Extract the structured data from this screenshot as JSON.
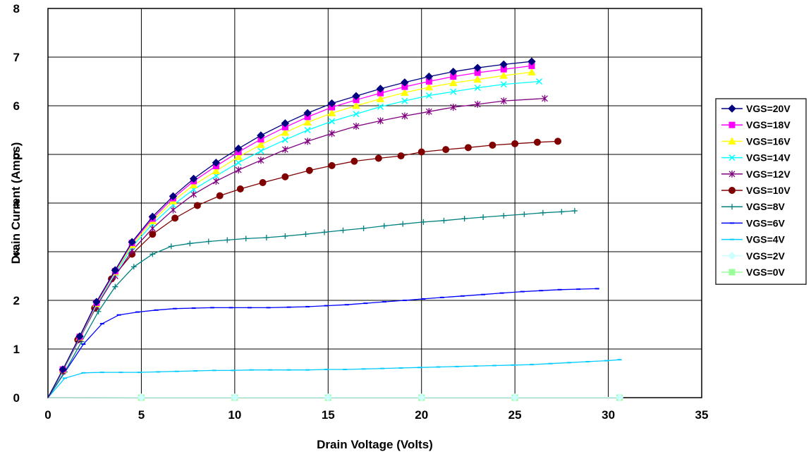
{
  "chart_data": {
    "type": "line",
    "title": "",
    "xlabel": "Drain Voltage (Volts)",
    "ylabel": "Drain Current (Amps)",
    "xlim": [
      0,
      35
    ],
    "ylim": [
      0,
      8
    ],
    "x_ticks": [
      "0",
      "5",
      "10",
      "15",
      "20",
      "25",
      "30",
      "35"
    ],
    "y_ticks": [
      "0",
      "1",
      "2",
      "3",
      "4",
      "5",
      "6",
      "7",
      "8"
    ],
    "grid": true,
    "legend_position": "right",
    "series": [
      {
        "name": "VGS=20V",
        "color": "#000080",
        "marker": "diamond",
        "x": [
          0,
          0.8,
          1.7,
          2.6,
          3.6,
          4.5,
          5.6,
          6.7,
          7.8,
          9.0,
          10.2,
          11.4,
          12.7,
          13.9,
          15.2,
          16.5,
          17.8,
          19.1,
          20.4,
          21.7,
          23.0,
          24.4,
          25.9
        ],
        "y": [
          0,
          0.58,
          1.26,
          1.97,
          2.62,
          3.2,
          3.72,
          4.14,
          4.5,
          4.83,
          5.12,
          5.39,
          5.64,
          5.85,
          6.05,
          6.2,
          6.35,
          6.48,
          6.6,
          6.7,
          6.78,
          6.85,
          6.91
        ]
      },
      {
        "name": "VGS=18V",
        "color": "#FF00FF",
        "marker": "square",
        "x": [
          0,
          0.8,
          1.7,
          2.6,
          3.6,
          4.5,
          5.6,
          6.7,
          7.8,
          9.0,
          10.2,
          11.4,
          12.7,
          13.9,
          15.2,
          16.5,
          17.8,
          19.1,
          20.4,
          21.7,
          23.0,
          24.4,
          25.9
        ],
        "y": [
          0,
          0.58,
          1.25,
          1.95,
          2.6,
          3.18,
          3.68,
          4.1,
          4.45,
          4.76,
          5.05,
          5.31,
          5.56,
          5.77,
          5.97,
          6.12,
          6.26,
          6.39,
          6.5,
          6.6,
          6.68,
          6.75,
          6.82
        ]
      },
      {
        "name": "VGS=16V",
        "color": "#FFFF00",
        "marker": "triangle",
        "x": [
          0,
          0.8,
          1.7,
          2.6,
          3.6,
          4.5,
          5.6,
          6.7,
          7.8,
          9.0,
          10.2,
          11.4,
          12.7,
          13.9,
          15.2,
          16.5,
          17.8,
          19.1,
          20.4,
          21.7,
          23.0,
          24.4,
          25.9
        ],
        "y": [
          0,
          0.57,
          1.24,
          1.93,
          2.58,
          3.14,
          3.63,
          4.04,
          4.37,
          4.66,
          4.95,
          5.2,
          5.45,
          5.66,
          5.85,
          6.0,
          6.14,
          6.27,
          6.38,
          6.47,
          6.54,
          6.62,
          6.69
        ]
      },
      {
        "name": "VGS=14V",
        "color": "#00FFFF",
        "marker": "x",
        "x": [
          0,
          0.8,
          1.7,
          2.6,
          3.6,
          4.5,
          5.6,
          6.7,
          7.8,
          9.0,
          10.2,
          11.4,
          12.7,
          13.9,
          15.2,
          16.5,
          17.8,
          19.1,
          20.4,
          21.7,
          23.0,
          24.4,
          26.3
        ],
        "y": [
          0,
          0.56,
          1.23,
          1.91,
          2.55,
          3.1,
          3.57,
          3.96,
          4.28,
          4.56,
          4.83,
          5.07,
          5.3,
          5.5,
          5.68,
          5.83,
          5.98,
          6.1,
          6.21,
          6.29,
          6.37,
          6.44,
          6.5
        ]
      },
      {
        "name": "VGS=12V",
        "color": "#800080",
        "marker": "asterisk",
        "x": [
          0,
          0.8,
          1.7,
          2.6,
          3.6,
          4.5,
          5.6,
          6.7,
          7.8,
          9.0,
          10.2,
          11.4,
          12.7,
          13.9,
          15.2,
          16.5,
          17.8,
          19.1,
          20.4,
          21.7,
          23.0,
          24.4,
          26.6
        ],
        "y": [
          0,
          0.55,
          1.21,
          1.88,
          2.5,
          3.02,
          3.48,
          3.86,
          4.18,
          4.45,
          4.68,
          4.88,
          5.1,
          5.27,
          5.43,
          5.58,
          5.69,
          5.79,
          5.88,
          5.97,
          6.03,
          6.1,
          6.15
        ]
      },
      {
        "name": "VGS=10V",
        "color": "#800000",
        "marker": "circle",
        "x": [
          0,
          0.8,
          1.6,
          2.5,
          3.4,
          4.5,
          5.6,
          6.8,
          8.0,
          9.2,
          10.3,
          11.5,
          12.7,
          14.0,
          15.2,
          16.4,
          17.7,
          18.9,
          20.0,
          21.3,
          22.5,
          23.8,
          25.0,
          26.2,
          27.3
        ],
        "y": [
          0,
          0.55,
          1.19,
          1.84,
          2.44,
          2.95,
          3.36,
          3.69,
          3.95,
          4.15,
          4.29,
          4.42,
          4.54,
          4.67,
          4.77,
          4.86,
          4.92,
          4.97,
          5.05,
          5.1,
          5.14,
          5.19,
          5.22,
          5.25,
          5.27
        ]
      },
      {
        "name": "VGS=8V",
        "color": "#008080",
        "marker": "plus",
        "x": [
          0,
          0.9,
          1.8,
          2.7,
          3.6,
          4.6,
          5.6,
          6.6,
          7.6,
          8.6,
          9.6,
          10.6,
          11.7,
          12.7,
          13.8,
          14.8,
          15.8,
          16.9,
          18.0,
          19.0,
          20.1,
          21.2,
          22.3,
          23.3,
          24.4,
          25.5,
          26.5,
          27.5,
          28.2
        ],
        "y": [
          0,
          0.53,
          1.15,
          1.77,
          2.28,
          2.69,
          2.95,
          3.11,
          3.17,
          3.21,
          3.24,
          3.27,
          3.29,
          3.32,
          3.36,
          3.4,
          3.44,
          3.48,
          3.53,
          3.57,
          3.61,
          3.64,
          3.68,
          3.71,
          3.74,
          3.77,
          3.8,
          3.82,
          3.84
        ]
      },
      {
        "name": "VGS=6V",
        "color": "#0000FF",
        "marker": "dash",
        "x": [
          0,
          0.9,
          1.9,
          2.9,
          3.8,
          4.8,
          5.8,
          6.8,
          7.8,
          8.8,
          9.8,
          10.8,
          11.8,
          12.9,
          13.9,
          14.9,
          16.0,
          17.0,
          18.0,
          19.1,
          20.1,
          21.1,
          22.2,
          23.3,
          24.3,
          25.4,
          26.4,
          27.4,
          28.4,
          29.4
        ],
        "y": [
          0,
          0.52,
          1.1,
          1.52,
          1.7,
          1.76,
          1.8,
          1.83,
          1.84,
          1.85,
          1.85,
          1.85,
          1.85,
          1.86,
          1.87,
          1.89,
          1.91,
          1.94,
          1.97,
          2.0,
          2.03,
          2.06,
          2.09,
          2.12,
          2.15,
          2.18,
          2.2,
          2.22,
          2.23,
          2.24
        ]
      },
      {
        "name": "VGS=4V",
        "color": "#00CCFF",
        "marker": "dash",
        "x": [
          0,
          0.9,
          1.9,
          2.9,
          3.9,
          4.9,
          5.9,
          6.9,
          7.9,
          8.9,
          9.9,
          10.9,
          11.9,
          12.9,
          13.9,
          14.9,
          15.9,
          16.9,
          17.9,
          18.9,
          19.9,
          20.9,
          21.9,
          22.9,
          23.9,
          24.9,
          25.9,
          26.9,
          27.9,
          28.9,
          29.9,
          30.6
        ],
        "y": [
          0,
          0.4,
          0.51,
          0.52,
          0.52,
          0.52,
          0.53,
          0.54,
          0.55,
          0.56,
          0.56,
          0.57,
          0.57,
          0.57,
          0.57,
          0.58,
          0.58,
          0.59,
          0.6,
          0.61,
          0.62,
          0.63,
          0.64,
          0.65,
          0.66,
          0.67,
          0.68,
          0.7,
          0.72,
          0.74,
          0.76,
          0.78
        ]
      },
      {
        "name": "VGS=2V",
        "color": "#CCFFFF",
        "marker": "diamond",
        "x": [
          0,
          5,
          10,
          15,
          20,
          25,
          30.6
        ],
        "y": [
          0,
          0.005,
          0.005,
          0.005,
          0.005,
          0.005,
          0.005
        ]
      },
      {
        "name": "VGS=0V",
        "color": "#99FF99",
        "marker": "square",
        "x": [
          0,
          5,
          10,
          15,
          20,
          25,
          30.6
        ],
        "y": [
          0,
          0.0,
          0.0,
          0.0,
          0.0,
          0.0,
          0.0
        ]
      }
    ]
  }
}
